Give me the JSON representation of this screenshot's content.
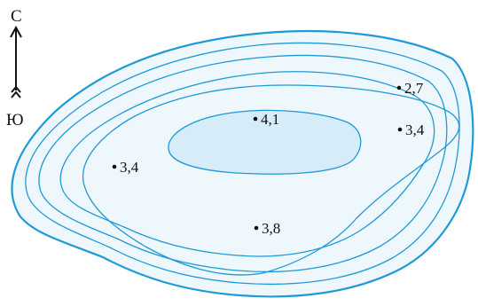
{
  "compass": {
    "north_label": "С",
    "south_label": "Ю"
  },
  "colors": {
    "contour_stroke": "#1f9ad6",
    "lake_fill": "#eef7fc",
    "deep_zone_fill": "#d6ecf8",
    "marker": "#111111"
  },
  "depth_points": [
    {
      "label": "2,7"
    },
    {
      "label": "3,4"
    },
    {
      "label": "4,1"
    },
    {
      "label": "3,4"
    },
    {
      "label": "3,8"
    }
  ]
}
